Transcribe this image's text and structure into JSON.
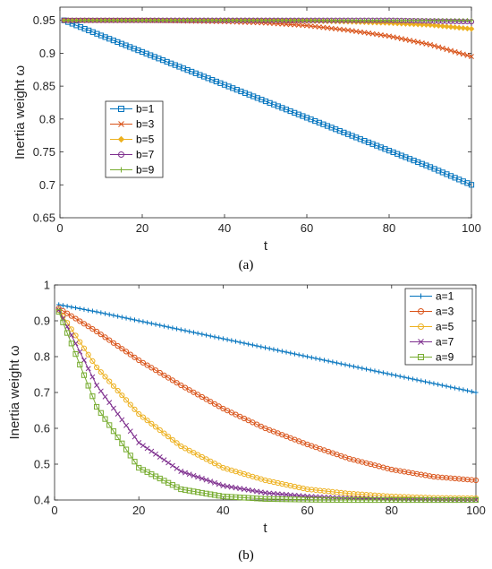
{
  "captions": [
    "(a)",
    "(b)"
  ],
  "chart_data": [
    {
      "type": "line",
      "xlabel": "t",
      "ylabel": "Inertia weight ω",
      "xlim": [
        0,
        100
      ],
      "ylim": [
        0.65,
        0.97
      ],
      "xticks": [
        0,
        20,
        40,
        60,
        80,
        100
      ],
      "yticks": [
        0.65,
        0.7,
        0.75,
        0.8,
        0.85,
        0.9,
        0.95
      ],
      "ytick_labels": [
        "0.65",
        "0.7",
        "0.75",
        "0.8",
        "0.85",
        "0.9",
        "0.95"
      ],
      "grid": false,
      "legend_position": "middle-left",
      "x": [
        1,
        10,
        20,
        30,
        40,
        50,
        60,
        70,
        80,
        90,
        100
      ],
      "series": [
        {
          "name": "b=1",
          "color": "#0072BD",
          "marker": "square",
          "values": [
            0.95,
            0.927,
            0.902,
            0.877,
            0.852,
            0.827,
            0.802,
            0.777,
            0.752,
            0.727,
            0.7
          ]
        },
        {
          "name": "b=3",
          "color": "#D95319",
          "marker": "x",
          "values": [
            0.95,
            0.95,
            0.95,
            0.949,
            0.948,
            0.946,
            0.942,
            0.935,
            0.926,
            0.913,
            0.895
          ]
        },
        {
          "name": "b=5",
          "color": "#EDB120",
          "marker": "diamond",
          "values": [
            0.95,
            0.95,
            0.95,
            0.95,
            0.95,
            0.95,
            0.949,
            0.948,
            0.946,
            0.943,
            0.937
          ]
        },
        {
          "name": "b=7",
          "color": "#7E2F8E",
          "marker": "circle",
          "values": [
            0.95,
            0.95,
            0.95,
            0.95,
            0.95,
            0.95,
            0.95,
            0.95,
            0.95,
            0.949,
            0.948
          ]
        },
        {
          "name": "b=9",
          "color": "#77AC30",
          "marker": "plus",
          "values": [
            0.95,
            0.95,
            0.95,
            0.95,
            0.95,
            0.95,
            0.95,
            0.95,
            0.95,
            0.95,
            0.95
          ]
        }
      ]
    },
    {
      "type": "line",
      "xlabel": "t",
      "ylabel": "Inertia weight ω",
      "xlim": [
        0,
        100
      ],
      "ylim": [
        0.4,
        1.0
      ],
      "xticks": [
        0,
        20,
        40,
        60,
        80,
        100
      ],
      "yticks": [
        0.4,
        0.5,
        0.6,
        0.7,
        0.8,
        0.9,
        1.0
      ],
      "ytick_labels": [
        "0.4",
        "0.5",
        "0.6",
        "0.7",
        "0.8",
        "0.9",
        "1"
      ],
      "grid": false,
      "legend_position": "top-right",
      "x": [
        1,
        10,
        20,
        30,
        40,
        50,
        60,
        70,
        80,
        90,
        100
      ],
      "series": [
        {
          "name": "a=1",
          "color": "#0072BD",
          "marker": "plus",
          "values": [
            0.945,
            0.925,
            0.9,
            0.875,
            0.85,
            0.825,
            0.8,
            0.775,
            0.75,
            0.725,
            0.7
          ]
        },
        {
          "name": "a=3",
          "color": "#D95319",
          "marker": "circle",
          "values": [
            0.935,
            0.87,
            0.79,
            0.72,
            0.655,
            0.6,
            0.555,
            0.515,
            0.485,
            0.465,
            0.455
          ]
        },
        {
          "name": "a=5",
          "color": "#EDB120",
          "marker": "circle",
          "values": [
            0.93,
            0.77,
            0.64,
            0.55,
            0.49,
            0.455,
            0.43,
            0.418,
            0.41,
            0.406,
            0.405
          ]
        },
        {
          "name": "a=7",
          "color": "#7E2F8E",
          "marker": "x",
          "values": [
            0.93,
            0.72,
            0.56,
            0.48,
            0.44,
            0.42,
            0.41,
            0.405,
            0.402,
            0.401,
            0.4
          ]
        },
        {
          "name": "a=9",
          "color": "#77AC30",
          "marker": "square",
          "values": [
            0.925,
            0.66,
            0.49,
            0.43,
            0.41,
            0.403,
            0.401,
            0.4,
            0.4,
            0.4,
            0.4
          ]
        }
      ]
    }
  ]
}
